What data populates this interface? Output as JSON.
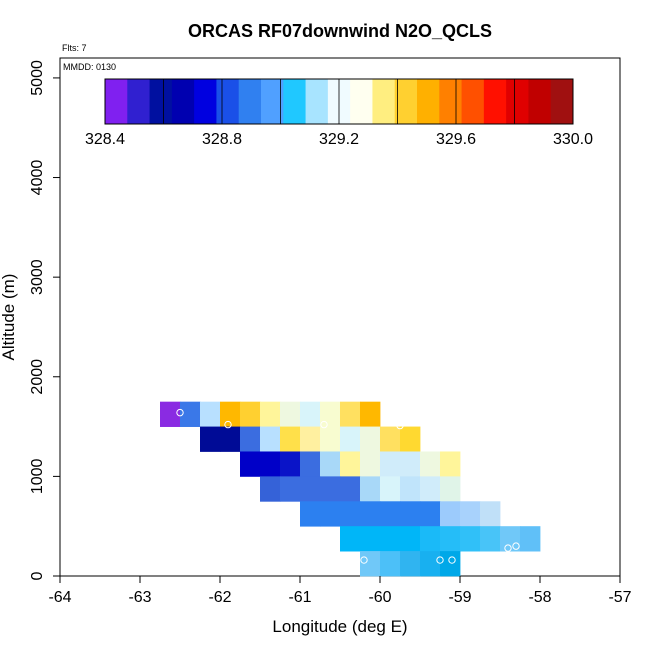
{
  "chart_data": {
    "type": "heatmap",
    "title": "ORCAS RF07downwind N2O_QCLS",
    "subtitle_flights": "Flts: 7",
    "subtitle_date": "MMDD: 0130",
    "xlabel": "Longitude (deg E)",
    "ylabel": "Altitude (m)",
    "xlim": [
      -64,
      -57
    ],
    "ylim": [
      0,
      5200
    ],
    "x_ticks": [
      "-64",
      "-63",
      "-62",
      "-61",
      "-60",
      "-59",
      "-58",
      "-57"
    ],
    "y_ticks": [
      "0",
      "1000",
      "2000",
      "3000",
      "4000",
      "5000"
    ],
    "colorbar": {
      "min": 328.4,
      "max": 330.0,
      "tick_labels": [
        "328.4",
        "328.8",
        "329.2",
        "329.6",
        "330.0"
      ],
      "colors": [
        "#8020f0",
        "#3020d0",
        "#0010a0",
        "#0000b0",
        "#0000e0",
        "#1a50e8",
        "#3080f0",
        "#50a0ff",
        "#20c8ff",
        "#a8e4ff",
        "#f0fbff",
        "#fffff0",
        "#ffee80",
        "#ffd030",
        "#ffb000",
        "#ff8000",
        "#ff5000",
        "#ff1000",
        "#e00000",
        "#c00000",
        "#a01010"
      ]
    },
    "cell_width_deg": 0.25,
    "cell_height_m": 250,
    "rows": [
      {
        "alt_bottom": 1500,
        "lon_start": -62.75,
        "colors": [
          "#8a2be2",
          "#3a78e8",
          "#b8e0ff",
          "#ffb800",
          "#ffd030",
          "#fff59a",
          "#eef8e0",
          "#d8f4fa",
          "#f8fcd0",
          "#ffe060",
          "#ffb800"
        ]
      },
      {
        "alt_bottom": 1250,
        "lon_start": -62.25,
        "colors": [
          "#000b96",
          "#000b96",
          "#3b6de0",
          "#b8e0ff",
          "#ffe04a",
          "#fff0a0",
          "#f8fcd0",
          "#d8f4fa",
          "#eef8e0",
          "#ffe060",
          "#ffd930"
        ]
      },
      {
        "alt_bottom": 1000,
        "lon_start": -61.75,
        "colors": [
          "#0000c8",
          "#0000c8",
          "#0a14c8",
          "#3b6de0",
          "#a8d8f8",
          "#fff59a",
          "#eef8e0",
          "#d0ecfa",
          "#d0ecfa",
          "#eef8e0",
          "#fff59a"
        ]
      },
      {
        "alt_bottom": 750,
        "lon_start": -61.5,
        "colors": [
          "#3562d8",
          "#3b6de0",
          "#3b6de0",
          "#3b6de0",
          "#3b6de0",
          "#a8d8f8",
          "#d8f4fa",
          "#c0e4fb",
          "#d0ecfa",
          "#e0f4e8"
        ]
      },
      {
        "alt_bottom": 500,
        "lon_start": -61.0,
        "colors": [
          "#2c80f0",
          "#2c80f0",
          "#2c80f0",
          "#2c80f0",
          "#2c80f0",
          "#2c80f0",
          "#2c80f0",
          "#9ccbfc",
          "#a8d2fc",
          "#c0e0f8"
        ]
      },
      {
        "alt_bottom": 250,
        "lon_start": -60.5,
        "colors": [
          "#00b6f8",
          "#00b6f8",
          "#00b6f8",
          "#00b6f8",
          "#1abaf8",
          "#25bdf8",
          "#30c0f8",
          "#48c4f8",
          "#70c8f8",
          "#60c0f8"
        ]
      },
      {
        "alt_bottom": 0,
        "lon_start": -60.25,
        "colors": [
          "#70c8f8",
          "#4cc0f8",
          "#30b4f0",
          "#18b0f0",
          "#00a8e8"
        ]
      }
    ],
    "flight_points": [
      [
        -62.5,
        1640
      ],
      [
        -61.9,
        1520
      ],
      [
        -60.7,
        1520
      ],
      [
        -59.75,
        1510
      ],
      [
        -58.3,
        300
      ],
      [
        -58.4,
        280
      ],
      [
        -60.2,
        160
      ],
      [
        -59.25,
        160
      ],
      [
        -59.1,
        160
      ]
    ]
  }
}
